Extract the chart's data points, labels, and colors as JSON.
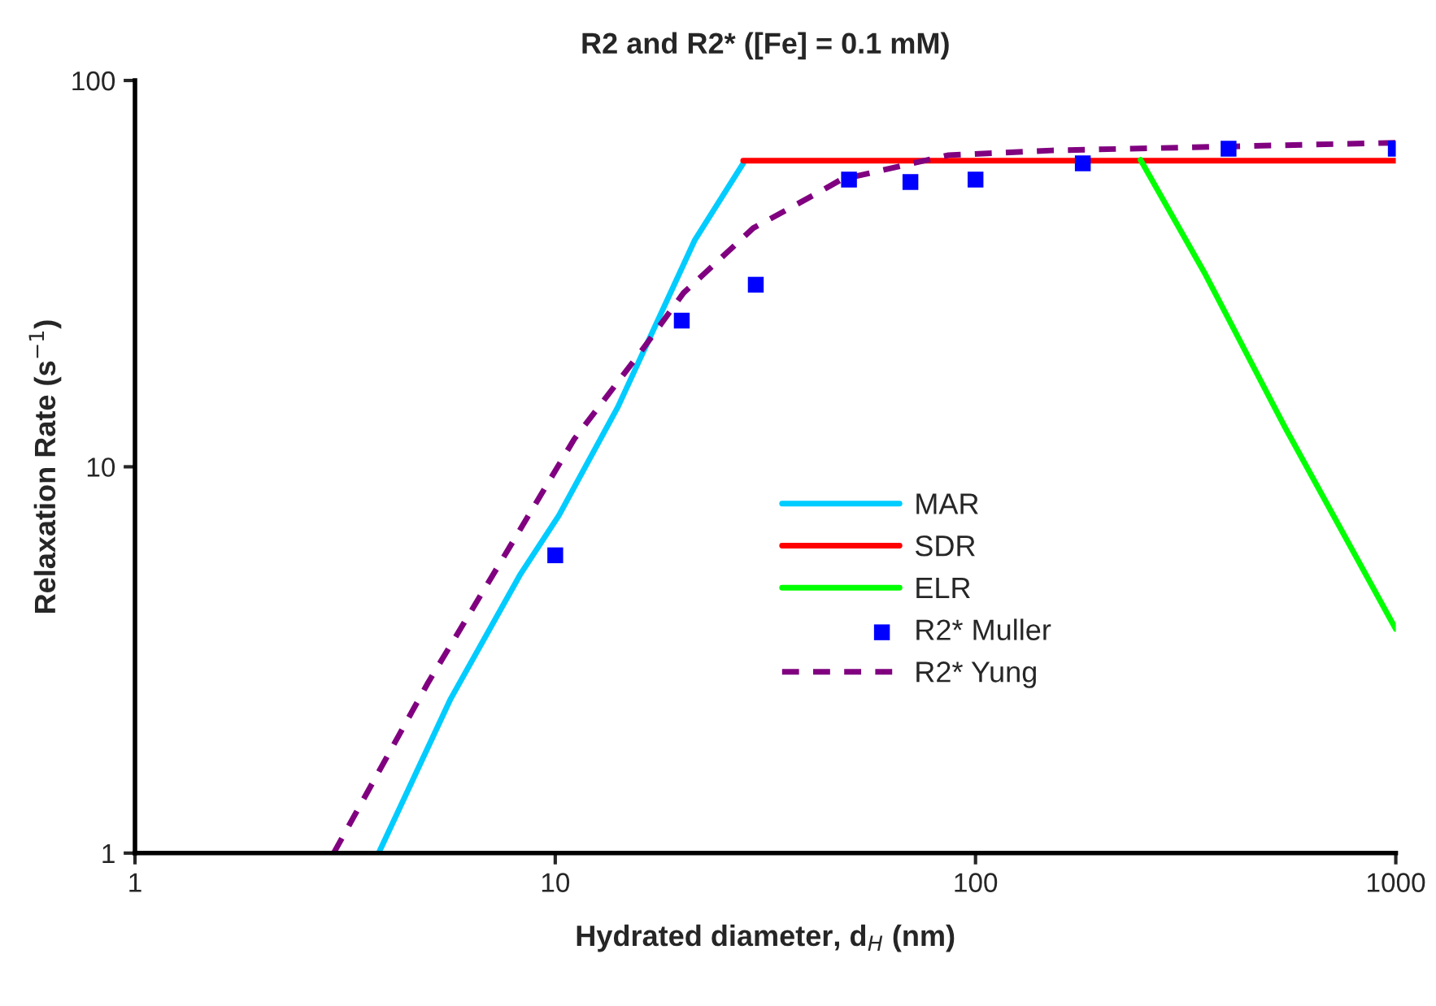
{
  "chart_data": {
    "type": "line",
    "title": "R2 and R2* ([Fe] = 0.1 mM)",
    "xlabel": "Hydrated diameter, d$_{H}$ (nm)",
    "ylabel": "Relaxation Rate (s$^{−1}$)",
    "log": "xy",
    "xlim": [
      1,
      1000
    ],
    "ylim": [
      1,
      100
    ],
    "xticks": [
      1,
      10,
      100,
      1000
    ],
    "yticks": [
      1,
      10,
      100
    ],
    "grid": false,
    "legend": "center",
    "series": [
      {
        "name": "MAR",
        "color": "#00ccff",
        "line_style": "solid",
        "marker": "none",
        "x": [
          3.8,
          5.64,
          8.27,
          10.2,
          14.1,
          21.5,
          28
        ],
        "values": [
          1,
          2.51,
          5.28,
          7.48,
          14.3,
          38.7,
          61
        ]
      },
      {
        "name": "SDR",
        "color": "#ff0000",
        "line_style": "solid",
        "marker": "none",
        "x": [
          28,
          1000
        ],
        "values": [
          62,
          62
        ]
      },
      {
        "name": "ELR",
        "color": "#00ff00",
        "line_style": "solid",
        "marker": "none",
        "x": [
          247,
          350,
          546,
          1000
        ],
        "values": [
          62.3,
          31.9,
          12.6,
          3.8
        ]
      },
      {
        "name": "R2* Muller",
        "color": "#0000ff",
        "type": "scatter",
        "marker": "square",
        "x": [
          10,
          20,
          30,
          50,
          70,
          100,
          180,
          400,
          1000
        ],
        "values": [
          5.9,
          23.9,
          29.6,
          55.4,
          54.6,
          55.4,
          61,
          66.6,
          66.6
        ]
      },
      {
        "name": "R2* Yung",
        "color": "#800080",
        "line_style": "dashed",
        "marker": "none",
        "x": [
          2.97,
          4.98,
          7.77,
          11.1,
          15.9,
          20.2,
          29.6,
          42.3,
          47.9,
          86.3,
          152,
          1000
        ],
        "values": [
          1,
          2.76,
          6.17,
          11.8,
          19.7,
          28.2,
          41.5,
          51.3,
          55.4,
          64.1,
          65.9,
          69
        ]
      }
    ]
  }
}
